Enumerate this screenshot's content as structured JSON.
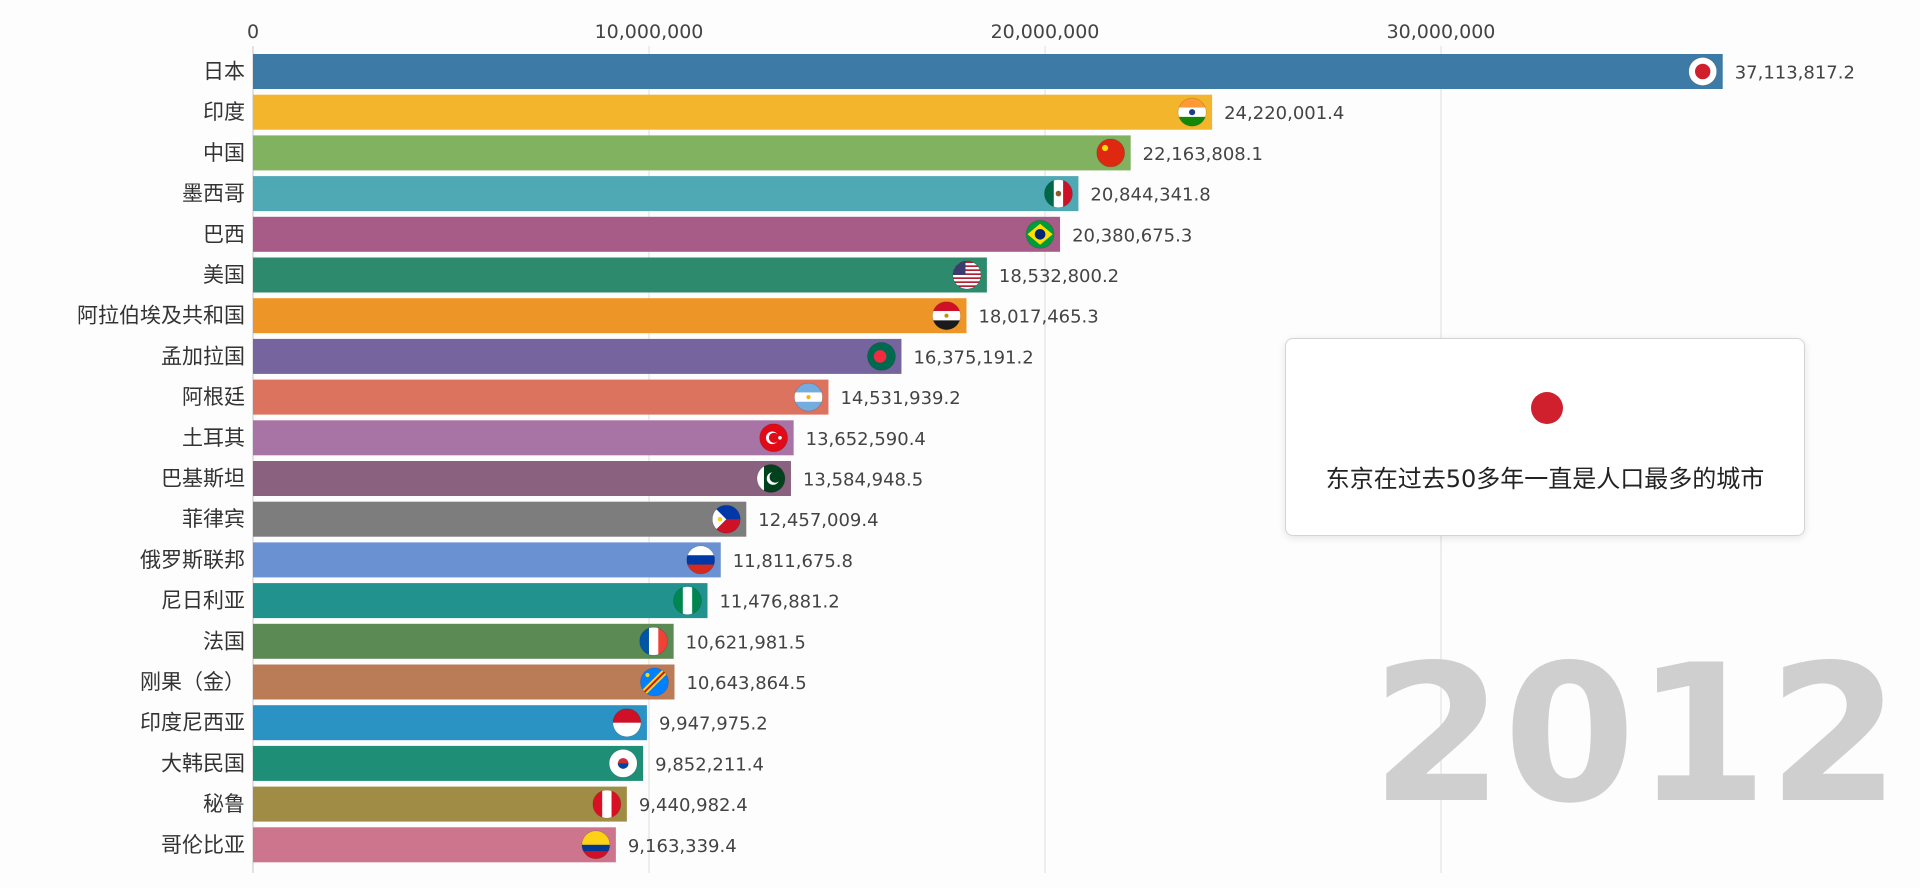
{
  "chart_data": {
    "type": "bar",
    "orientation": "horizontal",
    "title": "",
    "xlabel": "",
    "ylabel": "",
    "year": "2012",
    "xlim": [
      0,
      42000000
    ],
    "xticks": [
      0,
      10000000,
      20000000,
      30000000
    ],
    "xtick_labels": [
      "0",
      "10,000,000",
      "20,000,000",
      "30,000,000"
    ],
    "grid": true,
    "categories": [
      "日本",
      "印度",
      "中国",
      "墨西哥",
      "巴西",
      "美国",
      "阿拉伯埃及共和国",
      "孟加拉国",
      "阿根廷",
      "土耳其",
      "巴基斯坦",
      "菲律宾",
      "俄罗斯联邦",
      "尼日利亚",
      "法国",
      "刚果（金）",
      "印度尼西亚",
      "大韩民国",
      "秘鲁",
      "哥伦比亚"
    ],
    "values": [
      37113817.2,
      24220001.4,
      22163808.1,
      20844341.8,
      20380675.3,
      18532800.2,
      18017465.3,
      16375191.2,
      14531939.2,
      13652590.4,
      13584948.5,
      12457009.4,
      11811675.8,
      11476881.2,
      10621981.5,
      10643864.5,
      9947975.2,
      9852211.4,
      9440982.4,
      9163339.4
    ],
    "value_labels": [
      "37,113,817.2",
      "24,220,001.4",
      "22,163,808.1",
      "20,844,341.8",
      "20,380,675.3",
      "18,532,800.2",
      "18,017,465.3",
      "16,375,191.2",
      "14,531,939.2",
      "13,652,590.4",
      "13,584,948.5",
      "12,457,009.4",
      "11,811,675.8",
      "11,476,881.2",
      "10,621,981.5",
      "10,643,864.5",
      "9,947,975.2",
      "9,852,211.4",
      "9,440,982.4",
      "9,163,339.4"
    ],
    "colors": [
      "#3d7ba6",
      "#f3b52b",
      "#80b260",
      "#4fa9b5",
      "#a75b87",
      "#2e8a6c",
      "#ee9527",
      "#76649f",
      "#db735f",
      "#a873a5",
      "#8a617e",
      "#7d7d7d",
      "#6a91d2",
      "#22928e",
      "#5b8a55",
      "#b97c56",
      "#2b93c4",
      "#1e8e77",
      "#a08c45",
      "#cd758c"
    ],
    "flag_icons": [
      "japan-flag-icon",
      "india-flag-icon",
      "china-flag-icon",
      "mexico-flag-icon",
      "brazil-flag-icon",
      "usa-flag-icon",
      "egypt-flag-icon",
      "bangladesh-flag-icon",
      "argentina-flag-icon",
      "turkey-flag-icon",
      "pakistan-flag-icon",
      "philippines-flag-icon",
      "russia-flag-icon",
      "nigeria-flag-icon",
      "france-flag-icon",
      "dr-congo-flag-icon",
      "indonesia-flag-icon",
      "south-korea-flag-icon",
      "peru-flag-icon",
      "colombia-flag-icon"
    ]
  },
  "annotation": {
    "icon": "japan-flag-icon",
    "flag_color": "#d0202e",
    "text": "东京在过去50多年一直是人口最多的城市"
  }
}
